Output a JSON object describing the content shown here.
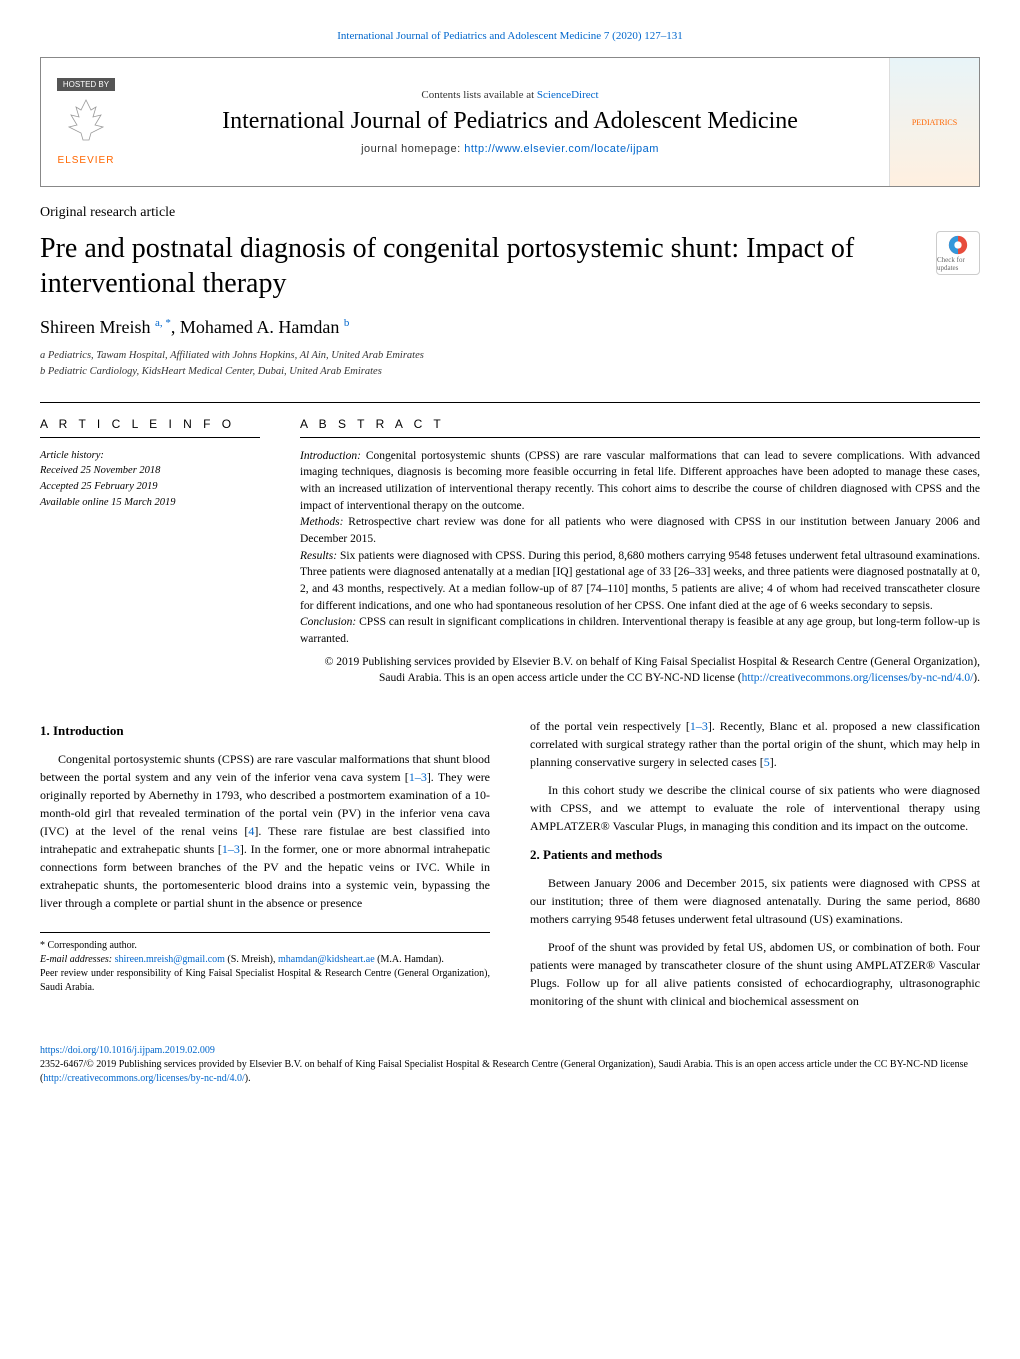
{
  "top_citation": "International Journal of Pediatrics and Adolescent Medicine 7 (2020) 127–131",
  "header": {
    "hosted_by": "HOSTED BY",
    "publisher": "ELSEVIER",
    "contents_prefix": "Contents lists available at ",
    "contents_link": "ScienceDirect",
    "journal_title": "International Journal of Pediatrics and Adolescent Medicine",
    "homepage_prefix": "journal homepage: ",
    "homepage_url": "http://www.elsevier.com/locate/ijpam",
    "cover_label": "PEDIATRICS"
  },
  "article_type": "Original research article",
  "title": "Pre and postnatal diagnosis of congenital portosystemic shunt: Impact of interventional therapy",
  "check_updates": "Check for updates",
  "authors_html": "Shireen Mreish <sup>a, *</sup>, Mohamed A. Hamdan <sup>b</sup>",
  "affiliations": [
    "a Pediatrics, Tawam Hospital, Affiliated with Johns Hopkins, Al Ain, United Arab Emirates",
    "b Pediatric Cardiology, KidsHeart Medical Center, Dubai, United Arab Emirates"
  ],
  "info_heading": "A R T I C L E   I N F O",
  "history": {
    "label": "Article history:",
    "received": "Received 25 November 2018",
    "accepted": "Accepted 25 February 2019",
    "online": "Available online 15 March 2019"
  },
  "abstract_heading": "A B S T R A C T",
  "abstract": {
    "intro_label": "Introduction:",
    "intro": " Congenital portosystemic shunts (CPSS) are rare vascular malformations that can lead to severe complications. With advanced imaging techniques, diagnosis is becoming more feasible occurring in fetal life. Different approaches have been adopted to manage these cases, with an increased utilization of interventional therapy recently. This cohort aims to describe the course of children diagnosed with CPSS and the impact of interventional therapy on the outcome.",
    "methods_label": "Methods:",
    "methods": " Retrospective chart review was done for all patients who were diagnosed with CPSS in our institution between January 2006 and December 2015.",
    "results_label": "Results:",
    "results": " Six patients were diagnosed with CPSS. During this period, 8,680 mothers carrying 9548 fetuses underwent fetal ultrasound examinations. Three patients were diagnosed antenatally at a median [IQ] gestational age of 33 [26–33] weeks, and three patients were diagnosed postnatally at 0, 2, and 43 months, respectively. At a median follow-up of 87 [74–110] months, 5 patients are alive; 4 of whom had received transcatheter closure for different indications, and one who had spontaneous resolution of her CPSS. One infant died at the age of 6 weeks secondary to sepsis.",
    "conclusion_label": "Conclusion:",
    "conclusion": " CPSS can result in significant complications in children. Interventional therapy is feasible at any age group, but long-term follow-up is warranted."
  },
  "copyright_text": "© 2019 Publishing services provided by Elsevier B.V. on behalf of King Faisal Specialist Hospital & Research Centre (General Organization), Saudi Arabia. This is an open access article under the CC BY-NC-ND license (",
  "license_url": "http://creativecommons.org/licenses/by-nc-nd/4.0/",
  "license_suffix": ").",
  "intro_heading": "1. Introduction",
  "intro_p1": "Congenital portosystemic shunts (CPSS) are rare vascular malformations that shunt blood between the portal system and any vein of the inferior vena cava system [1–3]. They were originally reported by Abernethy in 1793, who described a postmortem examination of a 10-month-old girl that revealed termination of the portal vein (PV) in the inferior vena cava (IVC) at the level of the renal veins [4]. These rare fistulae are best classified into intrahepatic and extrahepatic shunts [1–3]. In the former, one or more abnormal intrahepatic connections form between branches of the PV and the hepatic veins or IVC. While in extrahepatic shunts, the portomesenteric blood drains into a systemic vein, bypassing the liver through a complete or partial shunt in the absence or presence",
  "intro_p2": "of the portal vein respectively [1–3]. Recently, Blanc et al. proposed a new classification correlated with surgical strategy rather than the portal origin of the shunt, which may help in planning conservative surgery in selected cases [5].",
  "intro_p3": "In this cohort study we describe the clinical course of six patients who were diagnosed with CPSS, and we attempt to evaluate the role of interventional therapy using AMPLATZER® Vascular Plugs, in managing this condition and its impact on the outcome.",
  "methods_heading": "2. Patients and methods",
  "methods_p1": "Between January 2006 and December 2015, six patients were diagnosed with CPSS at our institution; three of them were diagnosed antenatally. During the same period, 8680 mothers carrying 9548 fetuses underwent fetal ultrasound (US) examinations.",
  "methods_p2": "Proof of the shunt was provided by fetal US, abdomen US, or combination of both. Four patients were managed by transcatheter closure of the shunt using AMPLATZER® Vascular Plugs. Follow up for all alive patients consisted of echocardiography, ultrasonographic monitoring of the shunt with clinical and biochemical assessment on",
  "footnotes": {
    "corresponding": "* Corresponding author.",
    "emails_label": "E-mail addresses: ",
    "email1": "shireen.mreish@gmail.com",
    "email1_name": " (S. Mreish), ",
    "email2": "mhamdan@kidsheart.ae",
    "email2_name": " (M.A. Hamdan).",
    "peer_review": "Peer review under responsibility of King Faisal Specialist Hospital & Research Centre (General Organization), Saudi Arabia."
  },
  "footer": {
    "doi": "https://doi.org/10.1016/j.ijpam.2019.02.009",
    "issn_line": "2352-6467/© 2019 Publishing services provided by Elsevier B.V. on behalf of King Faisal Specialist Hospital & Research Centre (General Organization), Saudi Arabia. This is an open access article under the CC BY-NC-ND license (",
    "license_url": "http://creativecommons.org/licenses/by-nc-nd/4.0/",
    "suffix": ")."
  },
  "colors": {
    "link": "#0066cc",
    "orange": "#ff6600",
    "border": "#888888",
    "text": "#000000"
  }
}
